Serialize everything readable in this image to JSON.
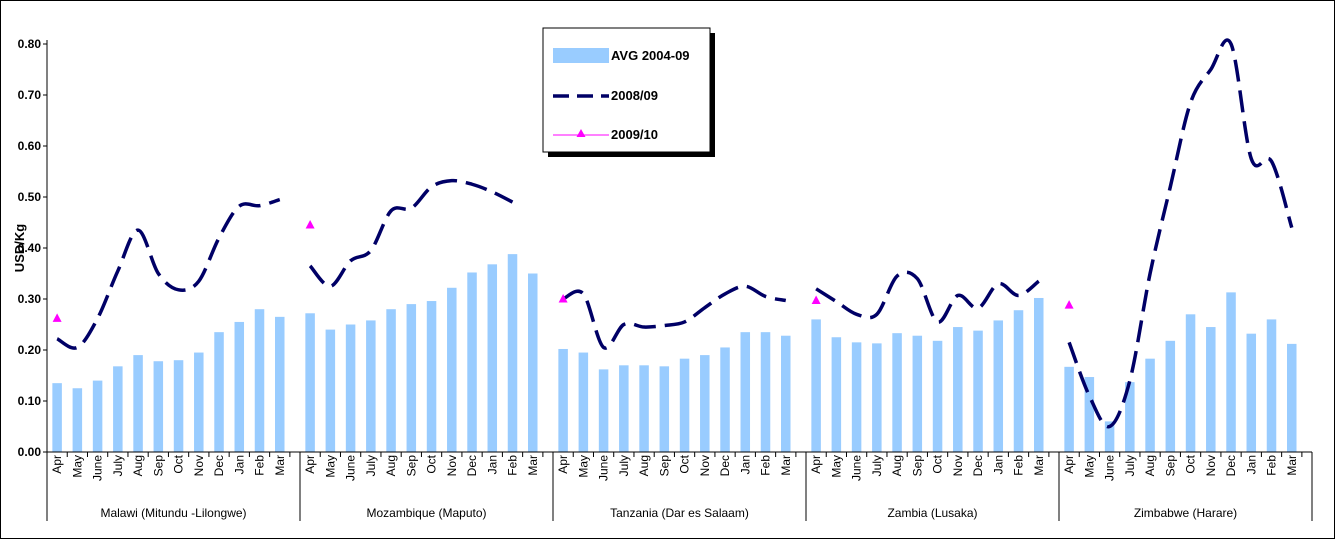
{
  "chart_data": {
    "type": "bar",
    "ylabel": "USD/Kg",
    "ylim": [
      0,
      0.8
    ],
    "yticks": [
      "0.00",
      "0.10",
      "0.20",
      "0.30",
      "0.40",
      "0.50",
      "0.60",
      "0.70",
      "0.80"
    ],
    "months": [
      "Apr",
      "May",
      "June",
      "July",
      "Aug",
      "Sep",
      "Oct",
      "Nov",
      "Dec",
      "Jan",
      "Feb",
      "Mar"
    ],
    "groups": [
      "Malawi (Mitundu -Lilongwe)",
      "Mozambique (Maputo)",
      "Tanzania (Dar es Salaam)",
      "Zambia (Lusaka)",
      "Zimbabwe (Harare)"
    ],
    "legend_position": "top-center",
    "grid": false,
    "series": [
      {
        "name": "AVG 2004-09",
        "type": "bar",
        "color": "#99ccff",
        "values": [
          [
            0.135,
            0.125,
            0.14,
            0.168,
            0.19,
            0.178,
            0.18,
            0.195,
            0.235,
            0.255,
            0.28,
            0.265
          ],
          [
            0.272,
            0.24,
            0.25,
            0.258,
            0.28,
            0.29,
            0.296,
            0.322,
            0.352,
            0.368,
            0.388,
            0.35
          ],
          [
            0.202,
            0.195,
            0.162,
            0.17,
            0.17,
            0.168,
            0.183,
            0.19,
            0.205,
            0.235,
            0.235,
            0.228
          ],
          [
            0.26,
            0.225,
            0.215,
            0.213,
            0.233,
            0.228,
            0.218,
            0.245,
            0.238,
            0.258,
            0.278,
            0.302
          ],
          [
            0.167,
            0.147,
            0.06,
            0.137,
            0.183,
            0.218,
            0.27,
            0.245,
            0.313,
            0.232,
            0.26,
            0.212
          ]
        ]
      },
      {
        "name": "2008/09",
        "type": "line",
        "color": "#000066",
        "values": [
          [
            0.222,
            0.205,
            0.262,
            0.355,
            0.435,
            0.35,
            0.318,
            0.335,
            0.42,
            0.482,
            0.483,
            0.495
          ],
          [
            0.365,
            0.325,
            0.375,
            0.395,
            0.473,
            0.478,
            0.52,
            0.532,
            0.525,
            0.51,
            0.49,
            null
          ],
          [
            0.3,
            0.31,
            0.205,
            0.25,
            0.245,
            0.248,
            0.255,
            0.283,
            0.31,
            0.325,
            0.305,
            0.297
          ],
          [
            0.32,
            0.295,
            0.27,
            0.27,
            0.345,
            0.34,
            0.255,
            0.307,
            0.282,
            0.33,
            0.307,
            0.335
          ],
          [
            0.215,
            0.11,
            0.05,
            0.14,
            0.35,
            0.52,
            0.685,
            0.75,
            0.8,
            0.575,
            0.57,
            0.44
          ]
        ]
      },
      {
        "name": "2009/10",
        "type": "marker",
        "color": "#ff00ff",
        "values": [
          [
            0.262,
            null,
            null,
            null,
            null,
            null,
            null,
            null,
            null,
            null,
            null,
            null
          ],
          [
            0.445,
            null,
            null,
            null,
            null,
            null,
            null,
            null,
            null,
            null,
            null,
            null
          ],
          [
            0.3,
            null,
            null,
            null,
            null,
            null,
            null,
            null,
            null,
            null,
            null,
            null
          ],
          [
            0.297,
            null,
            null,
            null,
            null,
            null,
            null,
            null,
            null,
            null,
            null,
            null
          ],
          [
            0.288,
            null,
            null,
            null,
            null,
            null,
            null,
            null,
            null,
            null,
            null,
            null
          ]
        ]
      }
    ]
  }
}
